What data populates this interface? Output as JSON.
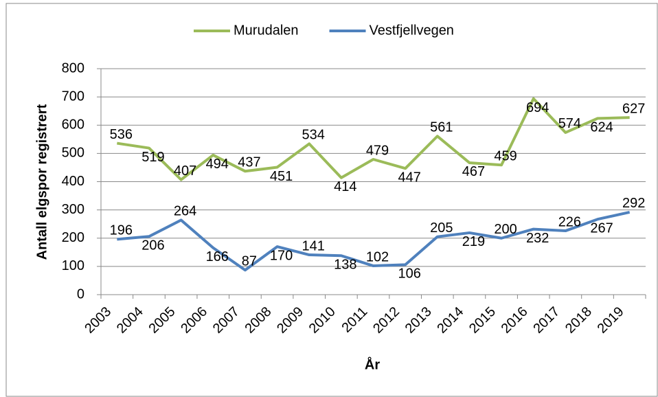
{
  "chart_data": {
    "type": "line",
    "x_label": "År",
    "y_label": "Antall elgspor registrert",
    "categories": [
      "2003",
      "2004",
      "2005",
      "2006",
      "2007",
      "2008",
      "2009",
      "2010",
      "2011",
      "2012",
      "2013",
      "2014",
      "2015",
      "2016",
      "2017",
      "2018",
      "2019"
    ],
    "series": [
      {
        "name": "Murudalen",
        "color": "#9bbb59",
        "values": [
          536,
          519,
          407,
          494,
          437,
          451,
          534,
          414,
          479,
          447,
          561,
          467,
          459,
          694,
          574,
          624,
          627
        ]
      },
      {
        "name": "Vestfjellvegen",
        "color": "#4f81bd",
        "values": [
          196,
          206,
          264,
          166,
          87,
          170,
          141,
          138,
          102,
          106,
          205,
          219,
          200,
          232,
          226,
          267,
          292
        ]
      }
    ],
    "ylim": [
      0,
      800
    ],
    "yticks": [
      0,
      100,
      200,
      300,
      400,
      500,
      600,
      700,
      800
    ],
    "grid": true,
    "legend": "top"
  }
}
